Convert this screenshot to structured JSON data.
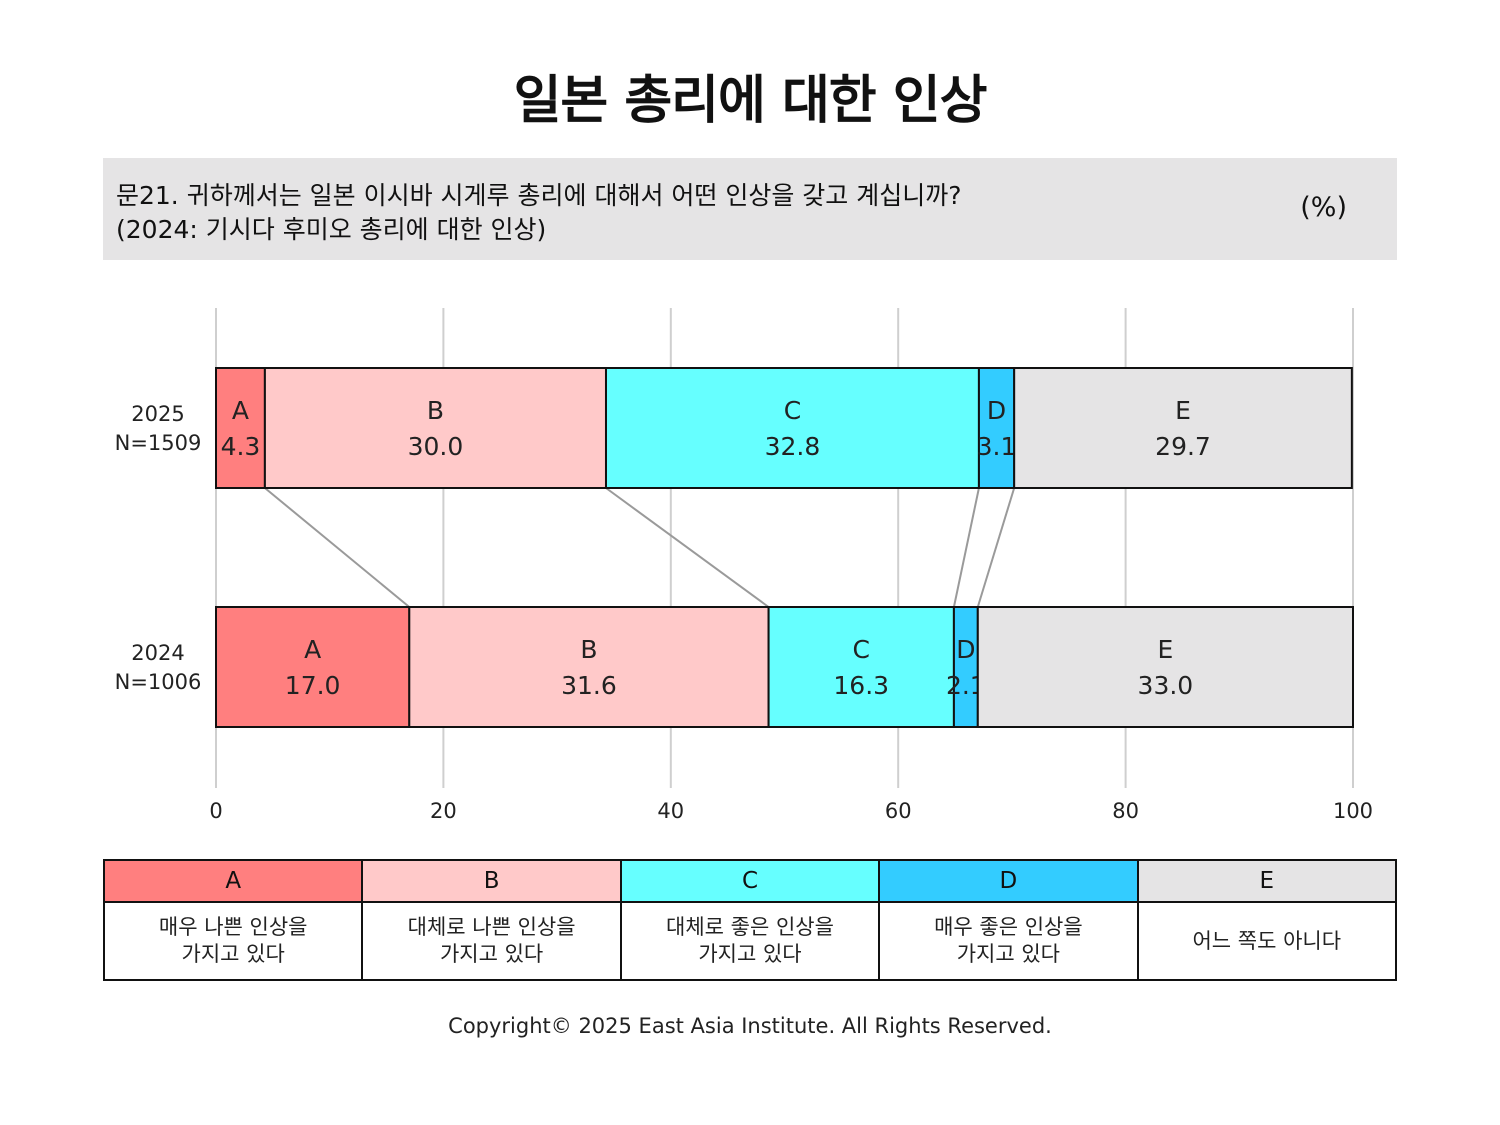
{
  "title": "일본 총리에 대한 인상",
  "question": {
    "line1": "문21. 귀하께서는 일본 이시바 시게루 총리에 대해서 어떤 인상을 갖고 계십니까?",
    "line2": "(2024: 기시다 후미오 총리에 대한 인상)",
    "unit": "(%)"
  },
  "chart_data": {
    "type": "bar",
    "stacked": true,
    "orientation": "horizontal",
    "categories": [
      {
        "year": "2025",
        "n": "N=1509"
      },
      {
        "year": "2024",
        "n": "N=1006"
      }
    ],
    "series": [
      {
        "name": "A",
        "color": "#ff7f7f",
        "values": [
          4.3,
          17.0
        ],
        "labels": [
          "4.3",
          "17.0"
        ]
      },
      {
        "name": "B",
        "color": "#ffc9c9",
        "values": [
          30.0,
          31.6
        ],
        "labels": [
          "30.0",
          "31.6"
        ]
      },
      {
        "name": "C",
        "color": "#66ffff",
        "values": [
          32.8,
          16.3
        ],
        "labels": [
          "32.8",
          "16.3"
        ]
      },
      {
        "name": "D",
        "color": "#33ccff",
        "values": [
          3.1,
          2.1
        ],
        "labels": [
          "3.1",
          "2.1"
        ]
      },
      {
        "name": "E",
        "color": "#e5e4e5",
        "values": [
          29.7,
          33.0
        ],
        "labels": [
          "29.7",
          "33.0"
        ]
      }
    ],
    "xlim": [
      0,
      100
    ],
    "xticks": [
      "0",
      "20",
      "40",
      "60",
      "80",
      "100"
    ],
    "grid": true,
    "connector_lines": true
  },
  "legend": [
    {
      "code": "A",
      "color": "#ff7f7f",
      "desc": "매우 나쁜 인상을\n가지고 있다"
    },
    {
      "code": "B",
      "color": "#ffc9c9",
      "desc": "대체로 나쁜 인상을\n가지고 있다"
    },
    {
      "code": "C",
      "color": "#66ffff",
      "desc": "대체로 좋은 인상을\n가지고 있다"
    },
    {
      "code": "D",
      "color": "#33ccff",
      "desc": "매우 좋은 인상을\n가지고 있다"
    },
    {
      "code": "E",
      "color": "#e5e4e5",
      "desc": "어느 쪽도 아니다"
    }
  ],
  "copyright": "Copyright© 2025 East Asia Institute. All Rights Reserved."
}
